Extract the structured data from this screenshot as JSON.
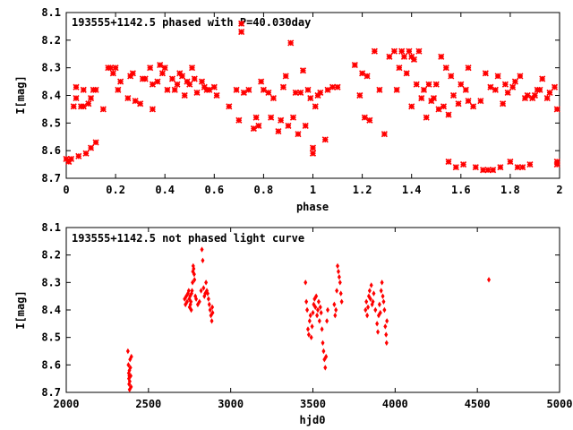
{
  "chart_data": [
    {
      "type": "scatter",
      "title": "193555+1142.5 phased with P=40.030day",
      "xlabel": "phase",
      "ylabel": "I[mag]",
      "xlim": [
        0,
        2
      ],
      "ylim": [
        8.1,
        8.7
      ],
      "y_inverted": true,
      "xticks": [
        "0",
        "0.2",
        "0.4",
        "0.6",
        "0.8",
        "1",
        "1.2",
        "1.4",
        "1.6",
        "1.8",
        "2"
      ],
      "yticks": [
        "8.1",
        "8.2",
        "8.3",
        "8.4",
        "8.5",
        "8.6",
        "8.7"
      ],
      "marker": "star",
      "color": "#ff0000",
      "points": [
        [
          0.0,
          8.63
        ],
        [
          0.01,
          8.64
        ],
        [
          0.02,
          8.63
        ],
        [
          0.03,
          8.44
        ],
        [
          0.04,
          8.41
        ],
        [
          0.04,
          8.37
        ],
        [
          0.05,
          8.62
        ],
        [
          0.06,
          8.44
        ],
        [
          0.07,
          8.44
        ],
        [
          0.07,
          8.38
        ],
        [
          0.08,
          8.61
        ],
        [
          0.09,
          8.43
        ],
        [
          0.1,
          8.41
        ],
        [
          0.1,
          8.59
        ],
        [
          0.11,
          8.38
        ],
        [
          0.12,
          8.38
        ],
        [
          0.12,
          8.57
        ],
        [
          0.15,
          8.45
        ],
        [
          0.17,
          8.3
        ],
        [
          0.18,
          8.3
        ],
        [
          0.19,
          8.32
        ],
        [
          0.2,
          8.3
        ],
        [
          0.21,
          8.38
        ],
        [
          0.22,
          8.35
        ],
        [
          0.25,
          8.41
        ],
        [
          0.26,
          8.33
        ],
        [
          0.27,
          8.32
        ],
        [
          0.28,
          8.42
        ],
        [
          0.3,
          8.43
        ],
        [
          0.31,
          8.34
        ],
        [
          0.32,
          8.34
        ],
        [
          0.34,
          8.3
        ],
        [
          0.35,
          8.45
        ],
        [
          0.35,
          8.36
        ],
        [
          0.37,
          8.35
        ],
        [
          0.38,
          8.29
        ],
        [
          0.39,
          8.32
        ],
        [
          0.4,
          8.3
        ],
        [
          0.41,
          8.38
        ],
        [
          0.43,
          8.34
        ],
        [
          0.44,
          8.38
        ],
        [
          0.45,
          8.36
        ],
        [
          0.46,
          8.32
        ],
        [
          0.47,
          8.33
        ],
        [
          0.48,
          8.4
        ],
        [
          0.49,
          8.35
        ],
        [
          0.5,
          8.36
        ],
        [
          0.51,
          8.3
        ],
        [
          0.52,
          8.34
        ],
        [
          0.53,
          8.39
        ],
        [
          0.55,
          8.35
        ],
        [
          0.56,
          8.37
        ],
        [
          0.57,
          8.38
        ],
        [
          0.58,
          8.38
        ],
        [
          0.6,
          8.37
        ],
        [
          0.61,
          8.4
        ],
        [
          0.66,
          8.44
        ],
        [
          0.69,
          8.38
        ],
        [
          0.7,
          8.49
        ],
        [
          0.71,
          8.17
        ],
        [
          0.71,
          8.14
        ],
        [
          0.72,
          8.39
        ],
        [
          0.74,
          8.38
        ],
        [
          0.76,
          8.52
        ],
        [
          0.77,
          8.48
        ],
        [
          0.78,
          8.51
        ],
        [
          0.79,
          8.35
        ],
        [
          0.8,
          8.38
        ],
        [
          0.82,
          8.39
        ],
        [
          0.83,
          8.48
        ],
        [
          0.84,
          8.41
        ],
        [
          0.86,
          8.53
        ],
        [
          0.87,
          8.49
        ],
        [
          0.88,
          8.37
        ],
        [
          0.89,
          8.33
        ],
        [
          0.9,
          8.51
        ],
        [
          0.91,
          8.21
        ],
        [
          0.92,
          8.48
        ],
        [
          0.93,
          8.39
        ],
        [
          0.94,
          8.54
        ],
        [
          0.95,
          8.39
        ],
        [
          0.96,
          8.31
        ],
        [
          0.97,
          8.51
        ],
        [
          0.98,
          8.38
        ],
        [
          0.99,
          8.41
        ],
        [
          1.0,
          8.61
        ],
        [
          1.0,
          8.59
        ],
        [
          1.01,
          8.44
        ],
        [
          1.02,
          8.4
        ],
        [
          1.03,
          8.39
        ],
        [
          1.05,
          8.56
        ],
        [
          1.06,
          8.38
        ],
        [
          1.08,
          8.37
        ],
        [
          1.1,
          8.37
        ],
        [
          1.17,
          8.29
        ],
        [
          1.19,
          8.4
        ],
        [
          1.2,
          8.32
        ],
        [
          1.21,
          8.48
        ],
        [
          1.22,
          8.33
        ],
        [
          1.23,
          8.49
        ],
        [
          1.25,
          8.24
        ],
        [
          1.27,
          8.38
        ],
        [
          1.29,
          8.54
        ],
        [
          1.31,
          8.26
        ],
        [
          1.33,
          8.24
        ],
        [
          1.34,
          8.38
        ],
        [
          1.35,
          8.3
        ],
        [
          1.36,
          8.24
        ],
        [
          1.37,
          8.26
        ],
        [
          1.38,
          8.32
        ],
        [
          1.39,
          8.24
        ],
        [
          1.4,
          8.26
        ],
        [
          1.4,
          8.44
        ],
        [
          1.41,
          8.27
        ],
        [
          1.42,
          8.36
        ],
        [
          1.43,
          8.24
        ],
        [
          1.44,
          8.41
        ],
        [
          1.45,
          8.38
        ],
        [
          1.46,
          8.48
        ],
        [
          1.47,
          8.36
        ],
        [
          1.48,
          8.42
        ],
        [
          1.49,
          8.41
        ],
        [
          1.5,
          8.36
        ],
        [
          1.51,
          8.45
        ],
        [
          1.52,
          8.26
        ],
        [
          1.53,
          8.44
        ],
        [
          1.54,
          8.3
        ],
        [
          1.55,
          8.64
        ],
        [
          1.55,
          8.47
        ],
        [
          1.56,
          8.33
        ],
        [
          1.57,
          8.4
        ],
        [
          1.58,
          8.66
        ],
        [
          1.59,
          8.43
        ],
        [
          1.6,
          8.36
        ],
        [
          1.61,
          8.65
        ],
        [
          1.62,
          8.38
        ],
        [
          1.63,
          8.42
        ],
        [
          1.63,
          8.3
        ],
        [
          1.65,
          8.44
        ],
        [
          1.66,
          8.66
        ],
        [
          1.68,
          8.42
        ],
        [
          1.69,
          8.67
        ],
        [
          1.7,
          8.32
        ],
        [
          1.71,
          8.67
        ],
        [
          1.72,
          8.37
        ],
        [
          1.73,
          8.67
        ],
        [
          1.74,
          8.38
        ],
        [
          1.75,
          8.33
        ],
        [
          1.76,
          8.66
        ],
        [
          1.77,
          8.43
        ],
        [
          1.78,
          8.36
        ],
        [
          1.79,
          8.39
        ],
        [
          1.8,
          8.64
        ],
        [
          1.81,
          8.37
        ],
        [
          1.82,
          8.35
        ],
        [
          1.83,
          8.66
        ],
        [
          1.84,
          8.33
        ],
        [
          1.85,
          8.66
        ],
        [
          1.86,
          8.41
        ],
        [
          1.87,
          8.4
        ],
        [
          1.88,
          8.65
        ],
        [
          1.89,
          8.41
        ],
        [
          1.9,
          8.4
        ],
        [
          1.91,
          8.38
        ],
        [
          1.92,
          8.38
        ],
        [
          1.93,
          8.34
        ],
        [
          1.95,
          8.41
        ],
        [
          1.96,
          8.39
        ],
        [
          1.98,
          8.37
        ],
        [
          1.99,
          8.45
        ],
        [
          1.99,
          8.64
        ],
        [
          1.99,
          8.65
        ]
      ]
    },
    {
      "type": "scatter",
      "title": "193555+1142.5 not phased light curve",
      "xlabel": "hjd0",
      "ylabel": "I[mag]",
      "xlim": [
        2000,
        5000
      ],
      "ylim": [
        8.1,
        8.7
      ],
      "y_inverted": true,
      "xticks": [
        "2000",
        "2500",
        "3000",
        "3500",
        "4000",
        "4500",
        "5000"
      ],
      "yticks": [
        "8.1",
        "8.2",
        "8.3",
        "8.4",
        "8.5",
        "8.6",
        "8.7"
      ],
      "marker": "diamond",
      "color": "#ff0000",
      "points": [
        [
          2375,
          8.55
        ],
        [
          2378,
          8.6
        ],
        [
          2380,
          8.63
        ],
        [
          2381,
          8.65
        ],
        [
          2382,
          8.67
        ],
        [
          2383,
          8.64
        ],
        [
          2384,
          8.62
        ],
        [
          2385,
          8.69
        ],
        [
          2386,
          8.66
        ],
        [
          2388,
          8.58
        ],
        [
          2390,
          8.61
        ],
        [
          2392,
          8.64
        ],
        [
          2394,
          8.68
        ],
        [
          2396,
          8.57
        ],
        [
          2720,
          8.36
        ],
        [
          2725,
          8.38
        ],
        [
          2730,
          8.35
        ],
        [
          2735,
          8.37
        ],
        [
          2740,
          8.34
        ],
        [
          2745,
          8.33
        ],
        [
          2748,
          8.36
        ],
        [
          2750,
          8.39
        ],
        [
          2753,
          8.35
        ],
        [
          2755,
          8.38
        ],
        [
          2758,
          8.37
        ],
        [
          2760,
          8.4
        ],
        [
          2762,
          8.34
        ],
        [
          2765,
          8.33
        ],
        [
          2768,
          8.3
        ],
        [
          2770,
          8.26
        ],
        [
          2772,
          8.24
        ],
        [
          2775,
          8.25
        ],
        [
          2778,
          8.27
        ],
        [
          2780,
          8.29
        ],
        [
          2785,
          8.35
        ],
        [
          2790,
          8.36
        ],
        [
          2800,
          8.38
        ],
        [
          2810,
          8.37
        ],
        [
          2820,
          8.33
        ],
        [
          2825,
          8.18
        ],
        [
          2830,
          8.22
        ],
        [
          2835,
          8.32
        ],
        [
          2840,
          8.35
        ],
        [
          2845,
          8.34
        ],
        [
          2850,
          8.3
        ],
        [
          2855,
          8.33
        ],
        [
          2860,
          8.34
        ],
        [
          2865,
          8.36
        ],
        [
          2870,
          8.38
        ],
        [
          2875,
          8.4
        ],
        [
          2880,
          8.42
        ],
        [
          2885,
          8.44
        ],
        [
          2888,
          8.39
        ],
        [
          2890,
          8.41
        ],
        [
          3455,
          8.3
        ],
        [
          3460,
          8.37
        ],
        [
          3465,
          8.4
        ],
        [
          3470,
          8.47
        ],
        [
          3475,
          8.49
        ],
        [
          3480,
          8.44
        ],
        [
          3485,
          8.42
        ],
        [
          3490,
          8.5
        ],
        [
          3495,
          8.46
        ],
        [
          3500,
          8.41
        ],
        [
          3505,
          8.38
        ],
        [
          3510,
          8.36
        ],
        [
          3515,
          8.39
        ],
        [
          3520,
          8.35
        ],
        [
          3525,
          8.42
        ],
        [
          3530,
          8.4
        ],
        [
          3535,
          8.37
        ],
        [
          3540,
          8.44
        ],
        [
          3545,
          8.39
        ],
        [
          3550,
          8.41
        ],
        [
          3555,
          8.47
        ],
        [
          3560,
          8.52
        ],
        [
          3565,
          8.55
        ],
        [
          3570,
          8.58
        ],
        [
          3575,
          8.61
        ],
        [
          3580,
          8.57
        ],
        [
          3585,
          8.44
        ],
        [
          3590,
          8.4
        ],
        [
          3630,
          8.38
        ],
        [
          3635,
          8.42
        ],
        [
          3640,
          8.4
        ],
        [
          3645,
          8.33
        ],
        [
          3650,
          8.24
        ],
        [
          3655,
          8.26
        ],
        [
          3660,
          8.28
        ],
        [
          3665,
          8.3
        ],
        [
          3670,
          8.34
        ],
        [
          3675,
          8.37
        ],
        [
          3820,
          8.4
        ],
        [
          3825,
          8.37
        ],
        [
          3830,
          8.42
        ],
        [
          3835,
          8.39
        ],
        [
          3840,
          8.35
        ],
        [
          3845,
          8.33
        ],
        [
          3850,
          8.36
        ],
        [
          3855,
          8.31
        ],
        [
          3860,
          8.38
        ],
        [
          3865,
          8.37
        ],
        [
          3870,
          8.34
        ],
        [
          3880,
          8.4
        ],
        [
          3890,
          8.45
        ],
        [
          3895,
          8.48
        ],
        [
          3900,
          8.42
        ],
        [
          3905,
          8.38
        ],
        [
          3910,
          8.41
        ],
        [
          3915,
          8.33
        ],
        [
          3920,
          8.3
        ],
        [
          3925,
          8.35
        ],
        [
          3930,
          8.37
        ],
        [
          3935,
          8.4
        ],
        [
          3940,
          8.46
        ],
        [
          3945,
          8.49
        ],
        [
          3948,
          8.52
        ],
        [
          3950,
          8.44
        ],
        [
          4570,
          8.29
        ]
      ]
    }
  ]
}
